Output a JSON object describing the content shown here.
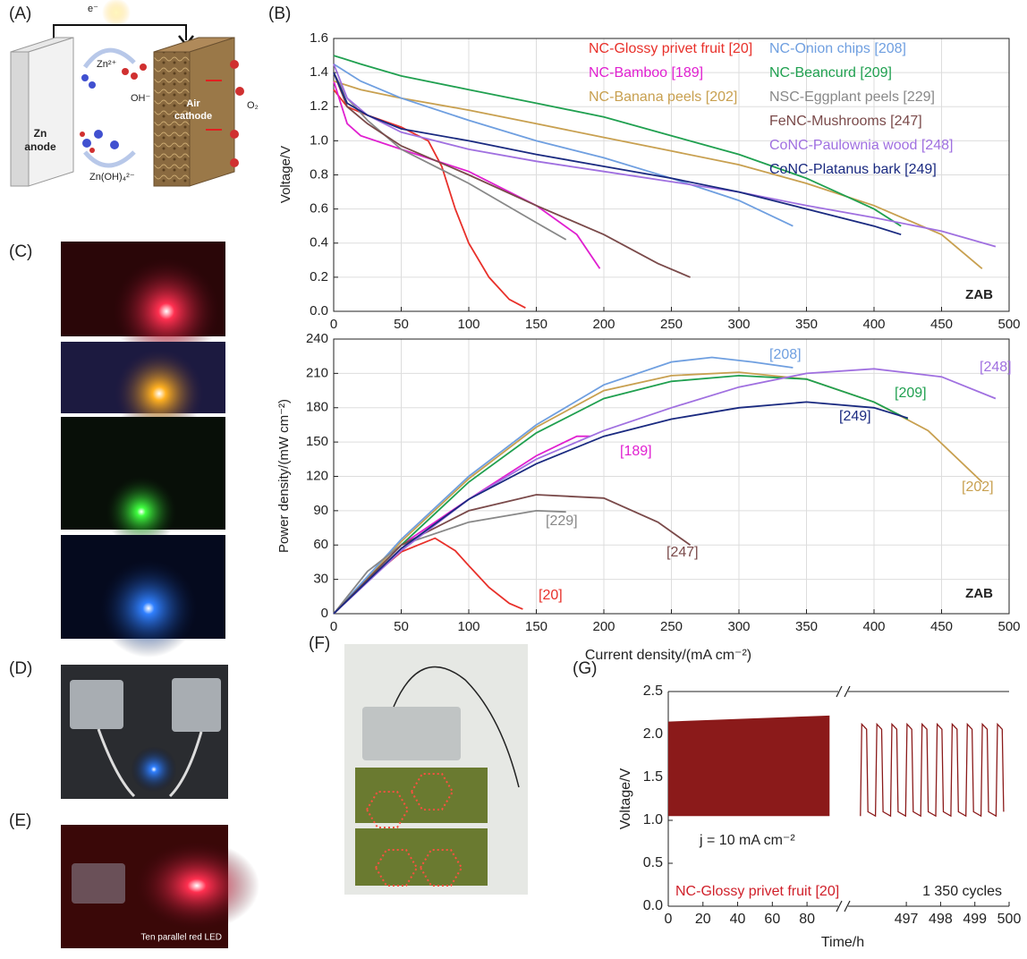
{
  "panels": {
    "a": "(A)",
    "b": "(B)",
    "c": "(C)",
    "d": "(D)",
    "e": "(E)",
    "f": "(F)",
    "g": "(G)"
  },
  "diagram_a": {
    "electron": "e⁻",
    "anode": [
      "Zn",
      "anode"
    ],
    "zn_ion": "Zn²⁺",
    "hydroxide": "OH⁻",
    "zincate": "Zn(OH)₄²⁻",
    "cathode": [
      "Air",
      "cathode"
    ],
    "oxygen": "O₂"
  },
  "photo_e_caption": "Ten parallel red LED",
  "chart_data": [
    {
      "type": "line",
      "y_label": "Voltage/V",
      "annotation": "ZAB",
      "xlim": [
        0,
        500
      ],
      "ylim": [
        0,
        1.6
      ],
      "xticks": [
        0,
        50,
        100,
        150,
        200,
        250,
        300,
        350,
        400,
        450,
        500
      ],
      "yticks": [
        {
          "value": 0,
          "label": "0.0"
        },
        0.2,
        0.4,
        0.6,
        0.8,
        {
          "value": 1,
          "label": "1.0"
        },
        1.2,
        1.4,
        1.6
      ],
      "grid": true,
      "series": [
        {
          "name": "NC-Glossy privet fruit [20]",
          "color": "#e8302a",
          "x": [
            0,
            10,
            25,
            50,
            70,
            80,
            90,
            100,
            115,
            130,
            142
          ],
          "values": [
            1.3,
            1.2,
            1.15,
            1.08,
            1.0,
            0.85,
            0.6,
            0.4,
            0.2,
            0.07,
            0.02
          ]
        },
        {
          "name": "NC-Bamboo [189]",
          "color": "#e020d0",
          "x": [
            0,
            10,
            20,
            50,
            100,
            150,
            180,
            197
          ],
          "values": [
            1.35,
            1.1,
            1.03,
            0.95,
            0.82,
            0.62,
            0.45,
            0.25
          ]
        },
        {
          "name": "NC-Banana peels [202]",
          "color": "#c8a050",
          "x": [
            0,
            20,
            50,
            100,
            150,
            200,
            250,
            300,
            350,
            400,
            450,
            480
          ],
          "values": [
            1.35,
            1.3,
            1.25,
            1.18,
            1.1,
            1.02,
            0.94,
            0.86,
            0.75,
            0.62,
            0.45,
            0.25
          ]
        },
        {
          "name": "NC-Onion chips [208]",
          "color": "#6f9fe0",
          "x": [
            0,
            20,
            50,
            100,
            150,
            200,
            250,
            300,
            340
          ],
          "values": [
            1.45,
            1.35,
            1.25,
            1.12,
            1.0,
            0.9,
            0.78,
            0.65,
            0.5
          ]
        },
        {
          "name": "NC-Beancurd [209]",
          "color": "#20a050",
          "x": [
            0,
            20,
            50,
            100,
            150,
            200,
            250,
            300,
            350,
            400,
            420
          ],
          "values": [
            1.5,
            1.45,
            1.38,
            1.3,
            1.22,
            1.14,
            1.03,
            0.92,
            0.78,
            0.6,
            0.5
          ]
        },
        {
          "name": "NSC-Eggplant peels [229]",
          "color": "#888888",
          "x": [
            0,
            10,
            25,
            50,
            100,
            150,
            172
          ],
          "values": [
            1.4,
            1.25,
            1.12,
            0.95,
            0.75,
            0.52,
            0.42
          ]
        },
        {
          "name": "FeNC-Mushrooms [247]",
          "color": "#7a4a4a",
          "x": [
            0,
            10,
            25,
            50,
            100,
            150,
            200,
            240,
            264
          ],
          "values": [
            1.4,
            1.2,
            1.1,
            0.97,
            0.8,
            0.62,
            0.45,
            0.28,
            0.2
          ]
        },
        {
          "name": "CoNC-Paulownia wood [248]",
          "color": "#a070e0",
          "x": [
            0,
            10,
            25,
            50,
            100,
            150,
            200,
            250,
            300,
            350,
            400,
            450,
            490
          ],
          "values": [
            1.45,
            1.25,
            1.15,
            1.05,
            0.95,
            0.88,
            0.82,
            0.76,
            0.7,
            0.62,
            0.55,
            0.47,
            0.38
          ]
        },
        {
          "name": "CoNC-Platanus bark [249]",
          "color": "#1a2a80",
          "x": [
            0,
            10,
            25,
            50,
            100,
            150,
            200,
            250,
            300,
            350,
            400,
            420
          ],
          "values": [
            1.4,
            1.22,
            1.15,
            1.07,
            1.0,
            0.92,
            0.85,
            0.78,
            0.7,
            0.6,
            0.5,
            0.45
          ]
        }
      ]
    },
    {
      "type": "line",
      "x_label": "Current density/(mA cm⁻²)",
      "y_label": "Power density/(mW cm⁻²)",
      "annotation": "ZAB",
      "xlim": [
        0,
        500
      ],
      "ylim": [
        0,
        240
      ],
      "xticks": [
        0,
        50,
        100,
        150,
        200,
        250,
        300,
        350,
        400,
        450,
        500
      ],
      "yticks": [
        0,
        30,
        60,
        90,
        120,
        150,
        180,
        210,
        240
      ],
      "grid": true,
      "series": [
        {
          "name": "[20]",
          "color": "#e8302a",
          "x": [
            0,
            25,
            50,
            75,
            90,
            100,
            115,
            130,
            140
          ],
          "values": [
            0,
            29,
            54,
            66,
            55,
            42,
            23,
            9,
            4
          ]
        },
        {
          "name": "[189]",
          "color": "#e020d0",
          "x": [
            0,
            50,
            100,
            150,
            180,
            190
          ],
          "values": [
            0,
            60,
            100,
            138,
            155,
            155
          ]
        },
        {
          "name": "[202]",
          "color": "#c8a050",
          "x": [
            0,
            50,
            100,
            150,
            200,
            250,
            300,
            350,
            400,
            440,
            480
          ],
          "values": [
            0,
            63,
            118,
            163,
            195,
            208,
            211,
            205,
            185,
            160,
            115
          ]
        },
        {
          "name": "[208]",
          "color": "#6f9fe0",
          "x": [
            0,
            50,
            100,
            150,
            200,
            250,
            280,
            310,
            340
          ],
          "values": [
            0,
            65,
            120,
            165,
            200,
            220,
            224,
            220,
            215
          ]
        },
        {
          "name": "[209]",
          "color": "#20a050",
          "x": [
            0,
            50,
            100,
            150,
            200,
            250,
            300,
            350,
            400,
            425
          ],
          "values": [
            0,
            60,
            115,
            158,
            188,
            203,
            208,
            205,
            185,
            170
          ]
        },
        {
          "name": "[229]",
          "color": "#888888",
          "x": [
            0,
            25,
            50,
            100,
            150,
            172
          ],
          "values": [
            0,
            37,
            60,
            80,
            90,
            89
          ]
        },
        {
          "name": "[247]",
          "color": "#7a4a4a",
          "x": [
            0,
            50,
            100,
            150,
            200,
            240,
            264
          ],
          "values": [
            0,
            60,
            90,
            104,
            101,
            80,
            60
          ]
        },
        {
          "name": "[248]",
          "color": "#a070e0",
          "x": [
            0,
            50,
            100,
            150,
            200,
            250,
            300,
            350,
            400,
            450,
            490
          ],
          "values": [
            0,
            55,
            100,
            135,
            160,
            180,
            198,
            210,
            214,
            207,
            188
          ]
        },
        {
          "name": "[249]",
          "color": "#1a2a80",
          "x": [
            0,
            50,
            100,
            150,
            200,
            250,
            300,
            350,
            400,
            425
          ],
          "values": [
            0,
            57,
            100,
            131,
            155,
            170,
            180,
            185,
            180,
            171
          ]
        }
      ]
    },
    {
      "type": "band",
      "y_label": "Voltage/V",
      "x_label": "Time/h",
      "annotations": [
        "j = 10 mA cm⁻²",
        "NC-Glossy privet fruit [20]"
      ],
      "xlim": [
        0,
        98
      ],
      "ylim": [
        0,
        2.5
      ],
      "xticks": [
        0,
        20,
        40,
        60,
        80
      ],
      "yticks": [
        {
          "value": 0,
          "label": "0.0"
        },
        0.5,
        {
          "value": 1,
          "label": "1.0"
        },
        1.5,
        {
          "value": 2,
          "label": "2.0"
        },
        2.5
      ],
      "color": "#8b1a1a",
      "x": [
        0,
        93
      ],
      "upper": [
        2.15,
        2.22
      ],
      "lower": [
        1.05,
        1.05
      ]
    },
    {
      "type": "line",
      "annotation": "1 350 cycles",
      "xlim": [
        495.3,
        500
      ],
      "ylim": [
        0,
        2.5
      ],
      "xticks": [
        497,
        498,
        499,
        500
      ],
      "series": [
        {
          "color": "#8b1a1a",
          "x": [
            495.66,
            495.7,
            495.84,
            495.88,
            496.1,
            496.14,
            496.28,
            496.32,
            496.54,
            496.58,
            496.72,
            496.76,
            496.98,
            497.02,
            497.16,
            497.2,
            497.42,
            497.46,
            497.6,
            497.64,
            497.86,
            497.9,
            498.04,
            498.08,
            498.3,
            498.34,
            498.48,
            498.52,
            498.74,
            498.78,
            498.92,
            498.96,
            499.18,
            499.22,
            499.36,
            499.4,
            499.62,
            499.66,
            499.8,
            499.84
          ],
          "values": [
            1.05,
            2.12,
            2.06,
            1.1,
            1.05,
            2.12,
            2.06,
            1.1,
            1.05,
            2.12,
            2.06,
            1.1,
            1.05,
            2.12,
            2.06,
            1.1,
            1.05,
            2.12,
            2.06,
            1.1,
            1.05,
            2.12,
            2.06,
            1.1,
            1.05,
            2.12,
            2.06,
            1.1,
            1.05,
            2.12,
            2.06,
            1.1,
            1.05,
            2.12,
            2.06,
            1.1,
            1.05,
            2.12,
            2.06,
            1.1
          ]
        }
      ]
    }
  ]
}
